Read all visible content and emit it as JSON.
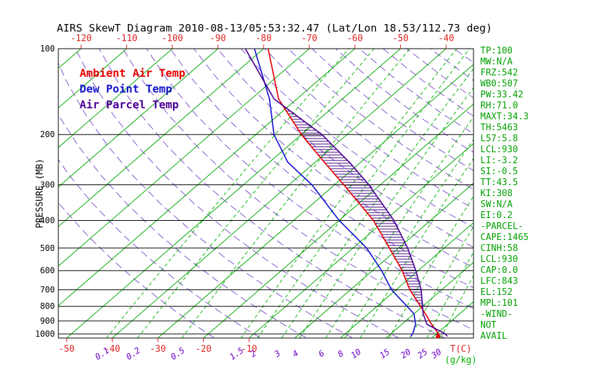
{
  "title": "AIRS SkewT Diagram 2010-08-13/05:53:32.47 (Lat/Lon 18.53/112.73 deg)",
  "colors": {
    "isotherm_green": "#00a800",
    "mixing_green": "#00b400",
    "dry_adiabat_purple": "#7040c8",
    "stats_green": "#00a000",
    "axis_red": "#dd2222",
    "mixing_label_purple": "#6a00c8",
    "hatch": "#3c0078",
    "pressure_line_black": "#000000",
    "ambient_red": "#e60000",
    "dew_blue": "#1414cd",
    "parcel_purple": "#4b0096"
  },
  "stats_panel": {
    "lines": [
      "TP:100",
      "MW:N/A",
      "FRZ:542",
      "WB0:507",
      "PW:33.42",
      "RH:71.0",
      "MAXT:34.3",
      "TH:5463",
      "L57:5.8",
      "LCL:930",
      "LI:-3.2",
      "SI:-0.5",
      "TT:43.5",
      "KI:308",
      "SW:N/A",
      "EI:0.2",
      "-PARCEL-",
      "CAPE:1465",
      "CINH:58",
      "LCL:930",
      "CAP:0.0",
      "LFC:843",
      "EL:152",
      "MPL:101",
      "-WIND-",
      "NOT",
      "AVAIL"
    ]
  },
  "chart_data": {
    "type": "line",
    "title": "AIRS SkewT Diagram 2010-08-13/05:53:32.47 (Lat/Lon 18.53/112.73 deg)",
    "x_axis": {
      "unit": "T(C)",
      "top_ticks": [
        -120,
        -110,
        -100,
        -90,
        -80,
        -70,
        -60,
        -50,
        -40
      ],
      "bottom_ticks": [
        -50,
        -40,
        -30,
        -20,
        -10
      ]
    },
    "y_axis": {
      "label": "PRESSURE (MB)",
      "scale": "log",
      "ticks": [
        100,
        200,
        300,
        400,
        500,
        600,
        700,
        800,
        900,
        1000
      ]
    },
    "mixing_ratio_axis": {
      "unit": "(g/kg)",
      "ticks": [
        0.1,
        0.2,
        0.5,
        1.5,
        2,
        3,
        4,
        6,
        8,
        10,
        15,
        20,
        25,
        30
      ]
    },
    "legend_position": "top-left",
    "grid": true,
    "series": [
      {
        "name": "Ambient Air Temp",
        "color": "#e60000",
        "points": [
          [
            1020,
            31
          ],
          [
            1000,
            30.5
          ],
          [
            925,
            26.5
          ],
          [
            850,
            22.5
          ],
          [
            700,
            13
          ],
          [
            600,
            6.5
          ],
          [
            500,
            -2
          ],
          [
            400,
            -12.5
          ],
          [
            300,
            -28
          ],
          [
            250,
            -38
          ],
          [
            200,
            -50
          ],
          [
            150,
            -64
          ],
          [
            100,
            -79
          ]
        ]
      },
      {
        "name": "Dew Point Temp",
        "color": "#1414cd",
        "points": [
          [
            1020,
            25
          ],
          [
            1000,
            24.8
          ],
          [
            925,
            23
          ],
          [
            850,
            20
          ],
          [
            700,
            9
          ],
          [
            600,
            2
          ],
          [
            500,
            -7
          ],
          [
            400,
            -20
          ],
          [
            300,
            -35
          ],
          [
            250,
            -46
          ],
          [
            200,
            -56
          ],
          [
            150,
            -66
          ],
          [
            100,
            -82
          ]
        ]
      },
      {
        "name": "Air Parcel Temp",
        "color": "#4b0096",
        "points": [
          [
            1020,
            33
          ],
          [
            1000,
            32
          ],
          [
            925,
            25.5
          ],
          [
            850,
            22
          ],
          [
            700,
            15.5
          ],
          [
            600,
            9.5
          ],
          [
            500,
            2
          ],
          [
            400,
            -8
          ],
          [
            300,
            -22.5
          ],
          [
            250,
            -32.5
          ],
          [
            200,
            -45.5
          ],
          [
            150,
            -65
          ],
          [
            100,
            -84
          ]
        ]
      }
    ],
    "cape_hatch": {
      "between": [
        "Air Parcel Temp",
        "Ambient Air Temp"
      ],
      "pressure_range": [
        820,
        158
      ]
    },
    "background": {
      "isotherm_step_c": 10,
      "isotherm_range_c": [
        -160,
        45
      ],
      "mixing_ratios_g_kg": [
        0.1,
        0.2,
        0.5,
        1.5,
        2,
        3,
        4,
        6,
        8,
        10,
        15,
        20,
        25,
        30
      ],
      "dry_adiabat_theta_c": {
        "min": -20,
        "max": 180,
        "step": 10
      }
    }
  }
}
